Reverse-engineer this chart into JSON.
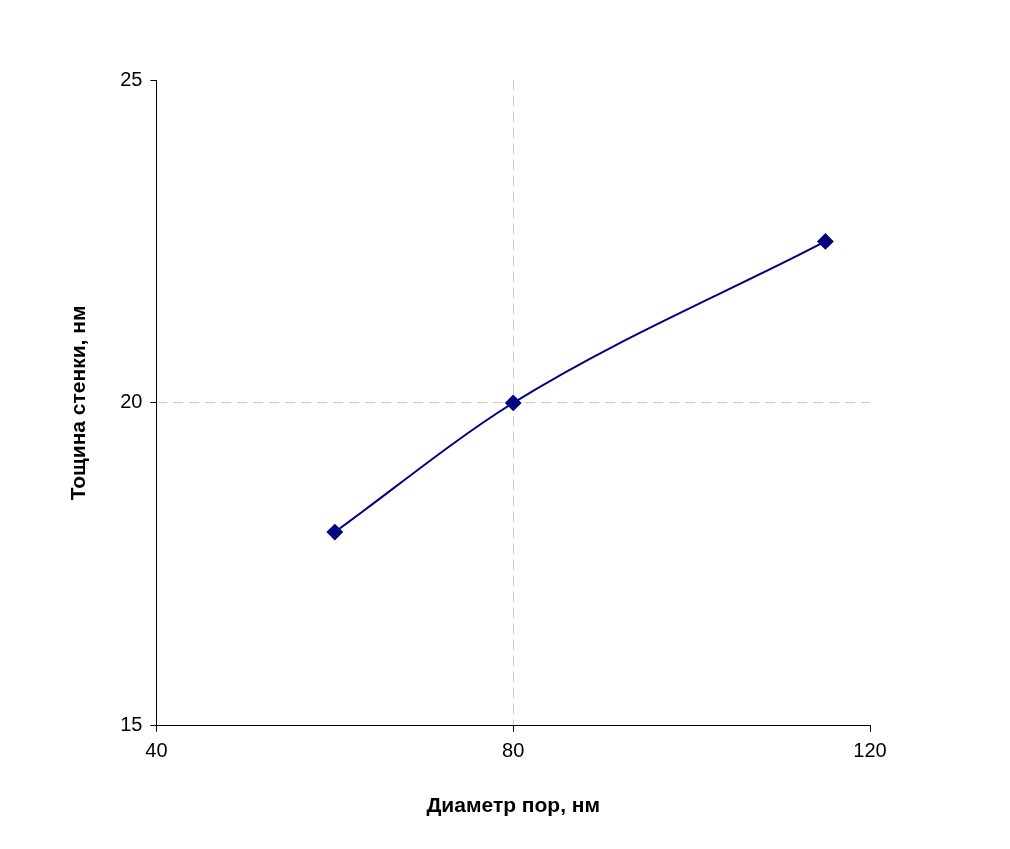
{
  "chart_data": {
    "type": "line",
    "xlabel": "Диаметр пор, нм",
    "ylabel": "Тощина стенки, нм",
    "x": [
      60,
      80,
      115
    ],
    "series": [
      {
        "color": "#000080",
        "values": [
          18,
          20,
          22.5
        ]
      }
    ],
    "xlim": [
      40,
      120
    ],
    "xticks": [
      40,
      80,
      120
    ],
    "ylim": [
      15,
      25
    ],
    "yticks": [
      15,
      20,
      25
    ],
    "grid": true,
    "legend": false,
    "marker": "diamond",
    "line_style": "solid"
  }
}
